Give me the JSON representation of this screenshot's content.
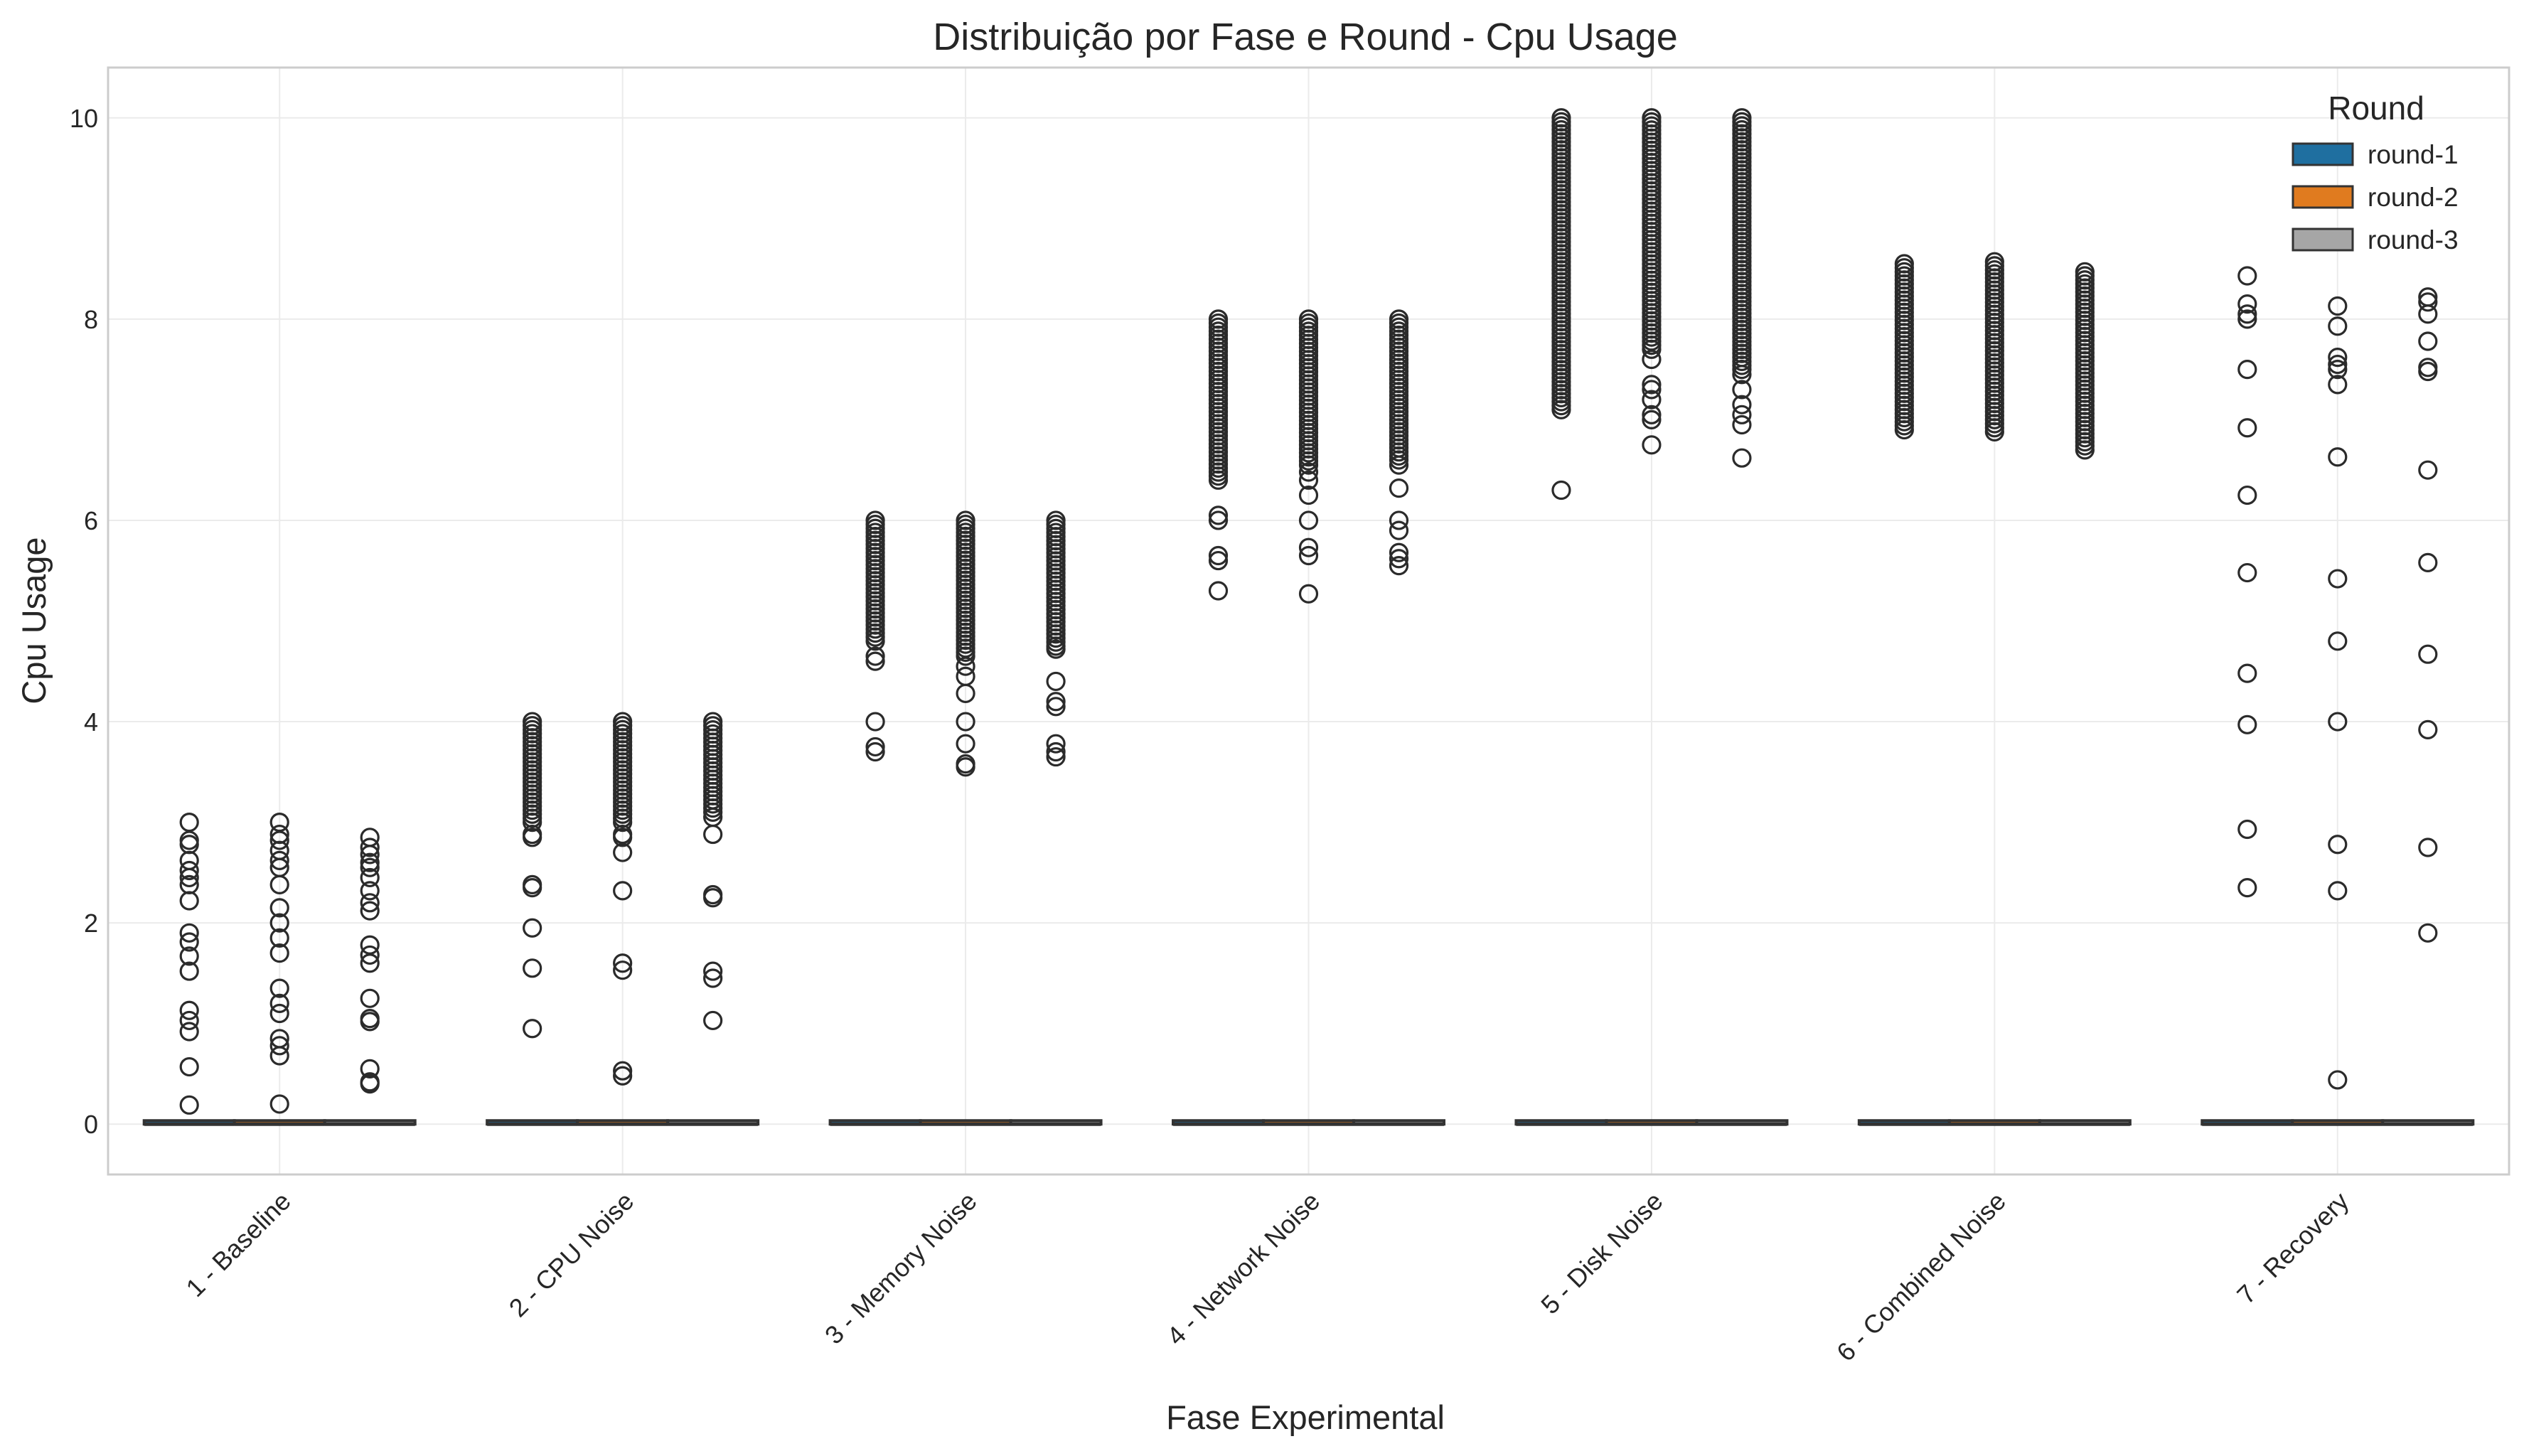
{
  "chart_data": {
    "type": "box",
    "title": "Distribuição por Fase e Round - Cpu Usage",
    "xlabel": "Fase Experimental",
    "ylabel": "Cpu Usage",
    "ylim": [
      -0.5,
      10.5
    ],
    "yticks": [
      0,
      2,
      4,
      6,
      8,
      10
    ],
    "grid": true,
    "categories": [
      "1 - Baseline",
      "2 - CPU Noise",
      "3 - Memory Noise",
      "4 - Network Noise",
      "5 - Disk Noise",
      "6 - Combined Noise",
      "7 - Recovery"
    ],
    "legend": {
      "title": "Round",
      "position": "top-right"
    },
    "series": [
      {
        "name": "round-1",
        "color": "#1f6fa0",
        "boxes": [
          {
            "q1": 0,
            "median": 0,
            "q3": 0.01,
            "outliers": [
              0.19,
              0.57,
              0.92,
              1.03,
              1.13,
              1.52,
              1.67,
              1.81,
              1.9,
              2.22,
              2.38,
              2.45,
              2.52,
              2.62,
              2.78,
              2.82,
              3.0
            ]
          },
          {
            "q1": 0,
            "median": 0,
            "q3": 0.01,
            "outliers": [
              0.95,
              1.55,
              1.95,
              2.35,
              2.38,
              2.85,
              2.88
            ],
            "outlier_band": [
              3.0,
              4.0
            ]
          },
          {
            "q1": 0,
            "median": 0,
            "q3": 0.01,
            "outliers": [
              3.7,
              3.75,
              4.0,
              4.6,
              4.65
            ],
            "outlier_band": [
              4.8,
              6.0
            ]
          },
          {
            "q1": 0,
            "median": 0,
            "q3": 0.01,
            "outliers": [
              5.3,
              5.6,
              5.65,
              6.0,
              6.05
            ],
            "outlier_band": [
              6.4,
              8.0
            ]
          },
          {
            "q1": 0,
            "median": 0,
            "q3": 0.01,
            "outliers": [
              6.3
            ],
            "outlier_band": [
              7.1,
              10.0
            ]
          },
          {
            "q1": 0,
            "median": 0,
            "q3": 0.01,
            "outliers": [],
            "outlier_band": [
              6.9,
              8.55
            ]
          },
          {
            "q1": 0,
            "median": 0,
            "q3": 0.01,
            "outliers": [
              2.35,
              2.93,
              3.97,
              4.48,
              5.48,
              6.25,
              6.92,
              7.5,
              8.0,
              8.05,
              8.15,
              8.43
            ]
          }
        ]
      },
      {
        "name": "round-2",
        "color": "#e07b1f",
        "boxes": [
          {
            "q1": 0,
            "median": 0,
            "q3": 0.01,
            "outliers": [
              0.2,
              0.68,
              0.78,
              0.85,
              1.1,
              1.2,
              1.35,
              1.7,
              1.85,
              2.0,
              2.15,
              2.38,
              2.55,
              2.62,
              2.72,
              2.82,
              2.88,
              3.0
            ]
          },
          {
            "q1": 0,
            "median": 0,
            "q3": 0.01,
            "outliers": [
              0.48,
              0.53,
              1.53,
              1.6,
              2.32,
              2.7,
              2.85,
              2.88
            ],
            "outlier_band": [
              3.0,
              4.0
            ]
          },
          {
            "q1": 0,
            "median": 0,
            "q3": 0.01,
            "outliers": [
              3.55,
              3.58,
              3.78,
              4.0,
              4.28,
              4.45,
              4.55
            ],
            "outlier_band": [
              4.65,
              6.0
            ]
          },
          {
            "q1": 0,
            "median": 0,
            "q3": 0.01,
            "outliers": [
              5.27,
              5.65,
              5.73,
              6.0,
              6.25,
              6.4,
              6.48
            ],
            "outlier_band": [
              6.55,
              8.0
            ]
          },
          {
            "q1": 0,
            "median": 0,
            "q3": 0.01,
            "outliers": [
              6.75,
              7.0,
              7.05,
              7.2,
              7.3,
              7.35,
              7.6
            ],
            "outlier_band": [
              7.7,
              10.0
            ]
          },
          {
            "q1": 0,
            "median": 0,
            "q3": 0.01,
            "outliers": [],
            "outlier_band": [
              6.88,
              8.57
            ]
          },
          {
            "q1": 0,
            "median": 0,
            "q3": 0.01,
            "outliers": [
              0.44,
              2.32,
              2.78,
              4.0,
              4.8,
              5.42,
              6.63,
              7.35,
              7.5,
              7.55,
              7.62,
              7.93,
              8.13
            ]
          }
        ]
      },
      {
        "name": "round-3",
        "color": "#a6a6a6",
        "boxes": [
          {
            "q1": 0,
            "median": 0,
            "q3": 0.01,
            "outliers": [
              0.4,
              0.42,
              0.55,
              1.02,
              1.05,
              1.25,
              1.6,
              1.68,
              1.78,
              2.12,
              2.2,
              2.32,
              2.45,
              2.55,
              2.6,
              2.68,
              2.75,
              2.85
            ]
          },
          {
            "q1": 0,
            "median": 0,
            "q3": 0.01,
            "outliers": [
              1.03,
              1.45,
              1.52,
              2.25,
              2.28,
              2.88,
              3.05
            ],
            "outlier_band": [
              3.1,
              4.0
            ]
          },
          {
            "q1": 0,
            "median": 0,
            "q3": 0.01,
            "outliers": [
              3.65,
              3.7,
              3.78,
              4.15,
              4.2,
              4.4,
              4.72
            ],
            "outlier_band": [
              4.75,
              6.0
            ]
          },
          {
            "q1": 0,
            "median": 0,
            "q3": 0.01,
            "outliers": [
              5.55,
              5.62,
              5.68,
              5.9,
              6.0,
              6.32,
              6.55
            ],
            "outlier_band": [
              6.6,
              8.0
            ]
          },
          {
            "q1": 0,
            "median": 0,
            "q3": 0.01,
            "outliers": [
              6.62,
              6.95,
              7.05,
              7.15,
              7.3,
              7.45
            ],
            "outlier_band": [
              7.5,
              10.0
            ]
          },
          {
            "q1": 0,
            "median": 0,
            "q3": 0.01,
            "outliers": [],
            "outlier_band": [
              6.7,
              8.47
            ]
          },
          {
            "q1": 0,
            "median": 0,
            "q3": 0.01,
            "outliers": [
              1.9,
              2.75,
              3.92,
              4.67,
              5.58,
              6.5,
              7.48,
              7.52,
              7.78,
              8.05,
              8.17,
              8.22
            ]
          }
        ]
      }
    ]
  }
}
